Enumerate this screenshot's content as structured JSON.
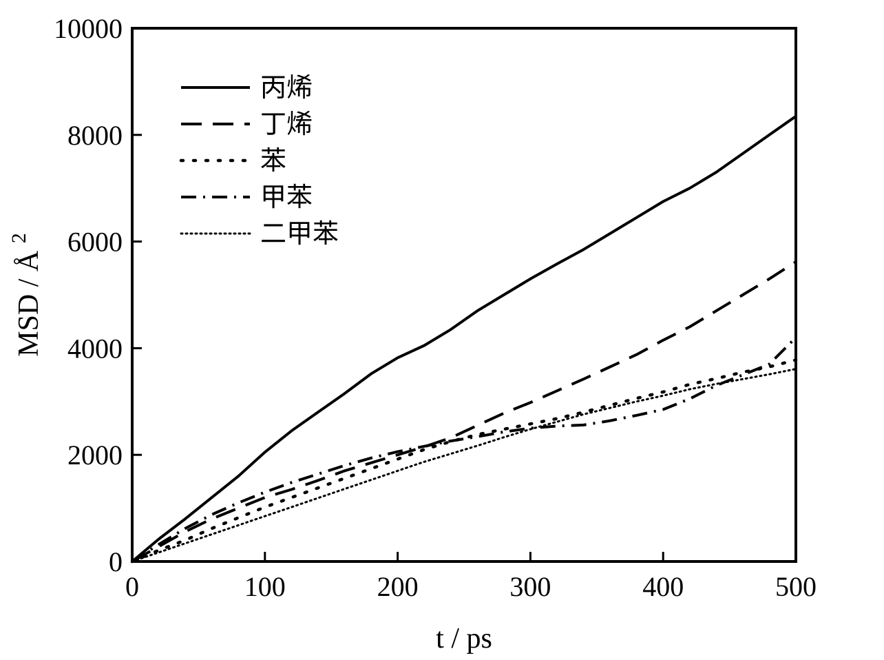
{
  "chart_data": {
    "type": "line",
    "title": "",
    "xlabel": "t / ps",
    "ylabel": "MSD / Å",
    "ylabel_superscript": "2",
    "xlim": [
      0,
      500
    ],
    "ylim": [
      0,
      10000
    ],
    "x_ticks": [
      0,
      100,
      200,
      300,
      400,
      500
    ],
    "y_ticks": [
      0,
      2000,
      4000,
      6000,
      8000,
      10000
    ],
    "grid": false,
    "legend_position": "top-left",
    "series": [
      {
        "name": "丙烯",
        "style": "solid",
        "points": [
          [
            0,
            0
          ],
          [
            20,
            420
          ],
          [
            40,
            800
          ],
          [
            60,
            1200
          ],
          [
            80,
            1600
          ],
          [
            100,
            2050
          ],
          [
            120,
            2450
          ],
          [
            140,
            2800
          ],
          [
            160,
            3150
          ],
          [
            180,
            3520
          ],
          [
            200,
            3820
          ],
          [
            220,
            4050
          ],
          [
            240,
            4350
          ],
          [
            260,
            4700
          ],
          [
            280,
            5000
          ],
          [
            300,
            5300
          ],
          [
            320,
            5580
          ],
          [
            340,
            5850
          ],
          [
            360,
            6150
          ],
          [
            380,
            6450
          ],
          [
            400,
            6750
          ],
          [
            420,
            7000
          ],
          [
            440,
            7300
          ],
          [
            460,
            7650
          ],
          [
            480,
            8000
          ],
          [
            500,
            8350
          ]
        ]
      },
      {
        "name": "丁烯",
        "style": "dash",
        "points": [
          [
            0,
            0
          ],
          [
            20,
            280
          ],
          [
            40,
            560
          ],
          [
            60,
            800
          ],
          [
            80,
            1000
          ],
          [
            100,
            1200
          ],
          [
            120,
            1350
          ],
          [
            140,
            1520
          ],
          [
            160,
            1700
          ],
          [
            180,
            1850
          ],
          [
            200,
            2000
          ],
          [
            220,
            2150
          ],
          [
            240,
            2320
          ],
          [
            260,
            2550
          ],
          [
            280,
            2780
          ],
          [
            300,
            2980
          ],
          [
            320,
            3200
          ],
          [
            340,
            3420
          ],
          [
            360,
            3650
          ],
          [
            380,
            3880
          ],
          [
            400,
            4150
          ],
          [
            420,
            4400
          ],
          [
            440,
            4700
          ],
          [
            460,
            5000
          ],
          [
            480,
            5300
          ],
          [
            500,
            5620
          ]
        ]
      },
      {
        "name": "苯",
        "style": "dot",
        "points": [
          [
            0,
            0
          ],
          [
            20,
            210
          ],
          [
            40,
            400
          ],
          [
            60,
            620
          ],
          [
            80,
            820
          ],
          [
            100,
            1020
          ],
          [
            120,
            1200
          ],
          [
            140,
            1380
          ],
          [
            160,
            1560
          ],
          [
            180,
            1740
          ],
          [
            200,
            1920
          ],
          [
            220,
            2100
          ],
          [
            240,
            2250
          ],
          [
            260,
            2380
          ],
          [
            280,
            2480
          ],
          [
            300,
            2580
          ],
          [
            320,
            2680
          ],
          [
            340,
            2800
          ],
          [
            360,
            2930
          ],
          [
            380,
            3060
          ],
          [
            400,
            3180
          ],
          [
            420,
            3320
          ],
          [
            440,
            3430
          ],
          [
            460,
            3550
          ],
          [
            480,
            3650
          ],
          [
            500,
            3780
          ]
        ]
      },
      {
        "name": "甲苯",
        "style": "dashdot",
        "points": [
          [
            0,
            0
          ],
          [
            20,
            320
          ],
          [
            40,
            620
          ],
          [
            60,
            880
          ],
          [
            80,
            1100
          ],
          [
            100,
            1300
          ],
          [
            120,
            1480
          ],
          [
            140,
            1640
          ],
          [
            160,
            1800
          ],
          [
            180,
            1940
          ],
          [
            200,
            2060
          ],
          [
            220,
            2160
          ],
          [
            240,
            2260
          ],
          [
            260,
            2340
          ],
          [
            280,
            2430
          ],
          [
            300,
            2500
          ],
          [
            320,
            2540
          ],
          [
            340,
            2560
          ],
          [
            360,
            2640
          ],
          [
            380,
            2740
          ],
          [
            400,
            2850
          ],
          [
            420,
            3050
          ],
          [
            440,
            3300
          ],
          [
            460,
            3500
          ],
          [
            480,
            3700
          ],
          [
            500,
            4200
          ]
        ]
      },
      {
        "name": "二甲苯",
        "style": "fine-dot",
        "points": [
          [
            0,
            0
          ],
          [
            20,
            170
          ],
          [
            40,
            340
          ],
          [
            60,
            510
          ],
          [
            80,
            680
          ],
          [
            100,
            850
          ],
          [
            120,
            1020
          ],
          [
            140,
            1190
          ],
          [
            160,
            1360
          ],
          [
            180,
            1530
          ],
          [
            200,
            1700
          ],
          [
            220,
            1870
          ],
          [
            240,
            2020
          ],
          [
            260,
            2170
          ],
          [
            280,
            2330
          ],
          [
            300,
            2480
          ],
          [
            320,
            2620
          ],
          [
            340,
            2760
          ],
          [
            360,
            2880
          ],
          [
            380,
            3000
          ],
          [
            400,
            3110
          ],
          [
            420,
            3230
          ],
          [
            440,
            3330
          ],
          [
            460,
            3420
          ],
          [
            480,
            3510
          ],
          [
            500,
            3610
          ]
        ]
      }
    ]
  }
}
